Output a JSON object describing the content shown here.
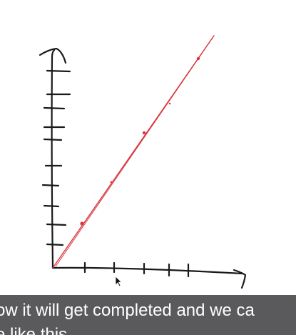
{
  "video": {
    "caption_lines": [
      "ow it will get completed and we ca",
      "e like this"
    ]
  },
  "drawing": {
    "ink_color": "#1a1a1a",
    "pen_color": "#d9363e",
    "cursor": "arrow-pointer-icon"
  }
}
